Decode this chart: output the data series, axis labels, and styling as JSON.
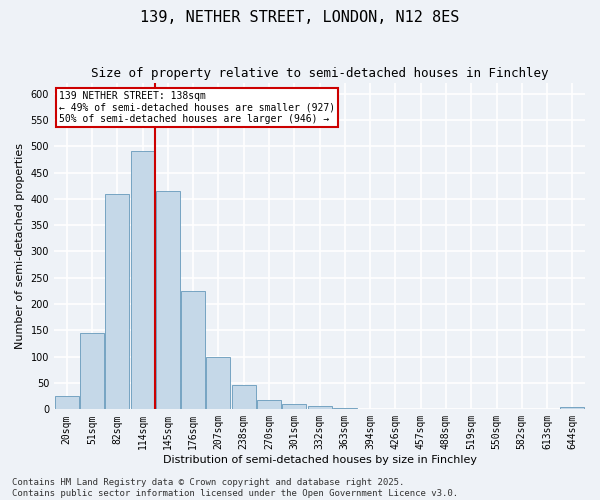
{
  "title": "139, NETHER STREET, LONDON, N12 8ES",
  "subtitle": "Size of property relative to semi-detached houses in Finchley",
  "xlabel": "Distribution of semi-detached houses by size in Finchley",
  "ylabel": "Number of semi-detached properties",
  "categories": [
    "20sqm",
    "51sqm",
    "82sqm",
    "114sqm",
    "145sqm",
    "176sqm",
    "207sqm",
    "238sqm",
    "270sqm",
    "301sqm",
    "332sqm",
    "363sqm",
    "394sqm",
    "426sqm",
    "457sqm",
    "488sqm",
    "519sqm",
    "550sqm",
    "582sqm",
    "613sqm",
    "644sqm"
  ],
  "values": [
    25,
    145,
    410,
    490,
    415,
    225,
    100,
    47,
    17,
    10,
    6,
    3,
    1,
    1,
    0,
    0,
    0,
    0,
    0,
    0,
    4
  ],
  "bar_color": "#c5d8e8",
  "bar_edge_color": "#6699bb",
  "vline_x_index": 3,
  "vline_color": "#cc0000",
  "annotation_text": "139 NETHER STREET: 138sqm\n← 49% of semi-detached houses are smaller (927)\n50% of semi-detached houses are larger (946) →",
  "annotation_box_color": "#cc0000",
  "ylim": [
    0,
    620
  ],
  "yticks": [
    0,
    50,
    100,
    150,
    200,
    250,
    300,
    350,
    400,
    450,
    500,
    550,
    600
  ],
  "footer_text": "Contains HM Land Registry data © Crown copyright and database right 2025.\nContains public sector information licensed under the Open Government Licence v3.0.",
  "background_color": "#eef2f7",
  "grid_color": "#ffffff",
  "title_fontsize": 11,
  "subtitle_fontsize": 9,
  "axis_label_fontsize": 8,
  "tick_fontsize": 7,
  "footer_fontsize": 6.5
}
